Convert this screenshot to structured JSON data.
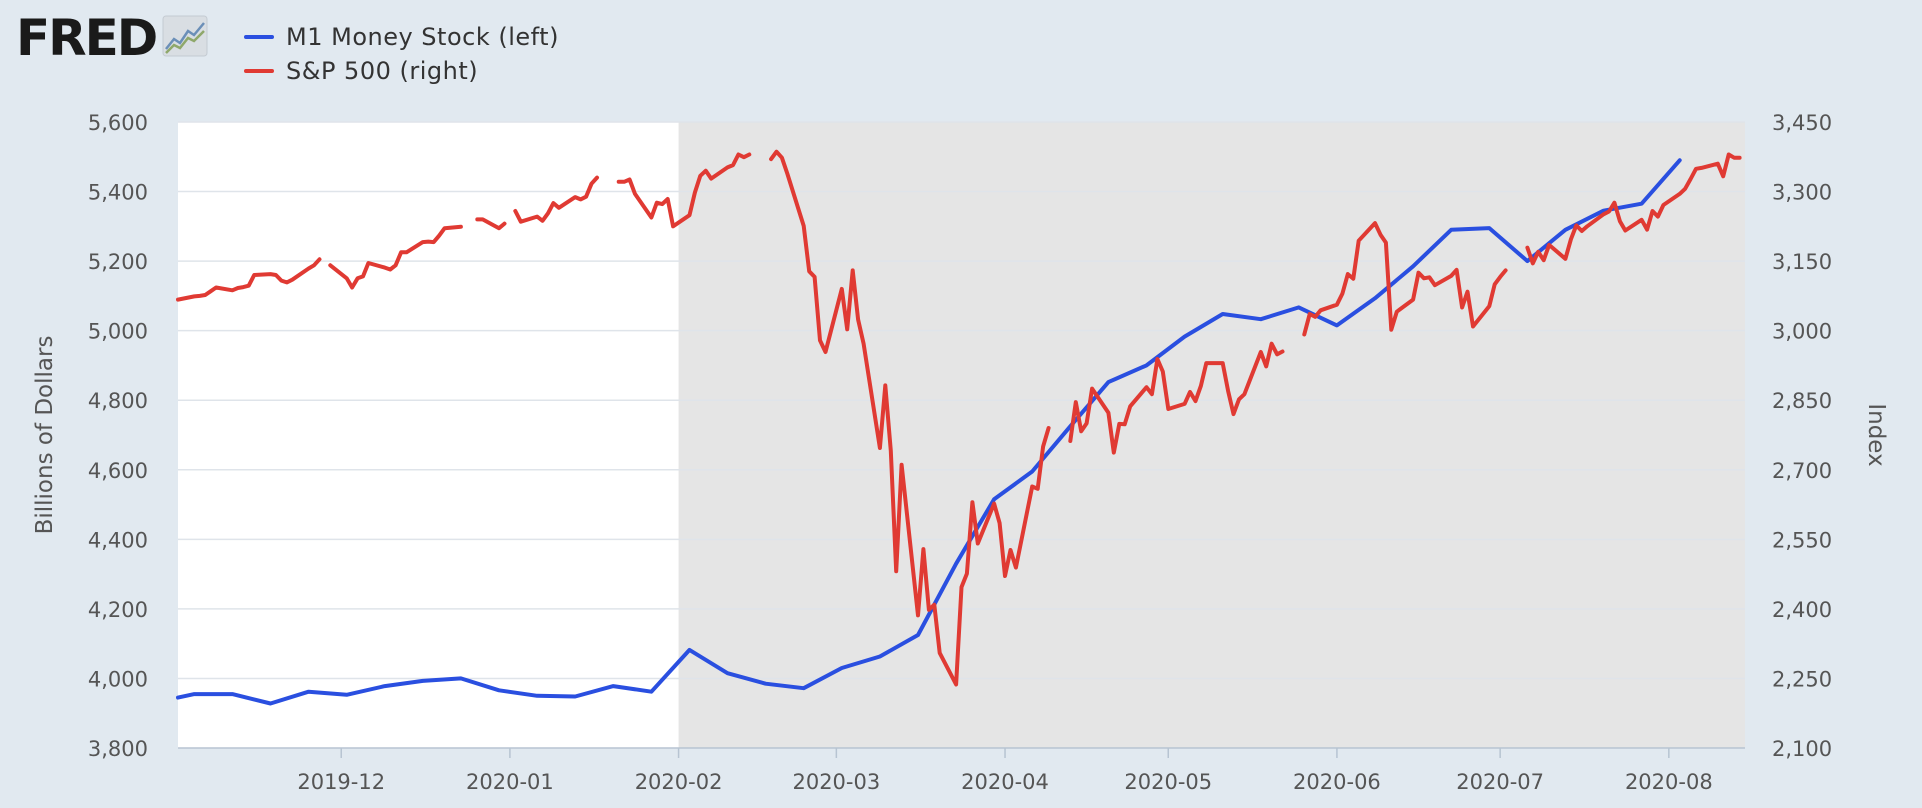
{
  "logo": {
    "text": "FRED",
    "icon": "chart-line-icon"
  },
  "colors": {
    "m1": "#2a4fe0",
    "sp500": "#e03a33",
    "background": "#e1e9f0",
    "plot": "#ffffff",
    "recession": "#e5e5e5",
    "grid": "#dfe4ea"
  },
  "chart_data": {
    "type": "line",
    "title": "",
    "legend_placement": "top-left",
    "grid": true,
    "recession_shading": {
      "start": "2020-02-01",
      "end": "2020-08-15"
    },
    "xaxis": {
      "range": [
        "2019-11-01",
        "2020-08-15"
      ],
      "ticks": [
        {
          "date": "2019-12-01",
          "label": "2019-12"
        },
        {
          "date": "2020-01-01",
          "label": "2020-01"
        },
        {
          "date": "2020-02-01",
          "label": "2020-02"
        },
        {
          "date": "2020-03-01",
          "label": "2020-03"
        },
        {
          "date": "2020-04-01",
          "label": "2020-04"
        },
        {
          "date": "2020-05-01",
          "label": "2020-05"
        },
        {
          "date": "2020-06-01",
          "label": "2020-06"
        },
        {
          "date": "2020-07-01",
          "label": "2020-07"
        },
        {
          "date": "2020-08-01",
          "label": "2020-08"
        }
      ]
    },
    "yaxis_left": {
      "label": "Billions of Dollars",
      "range": [
        3800,
        5600
      ],
      "ticks": [
        "3,800",
        "4,000",
        "4,200",
        "4,400",
        "4,600",
        "4,800",
        "5,000",
        "5,200",
        "5,400",
        "5,600"
      ]
    },
    "yaxis_right": {
      "label": "Index",
      "range": [
        2100,
        3450
      ],
      "ticks": [
        "2,100",
        "2,250",
        "2,400",
        "2,550",
        "2,700",
        "2,850",
        "3,000",
        "3,150",
        "3,300",
        "3,450"
      ]
    },
    "series": [
      {
        "name": "M1 Money Stock (left)",
        "axis": "left",
        "points": [
          [
            "2019-11-01",
            3945
          ],
          [
            "2019-11-04",
            3955
          ],
          [
            "2019-11-11",
            3955
          ],
          [
            "2019-11-18",
            3928
          ],
          [
            "2019-11-25",
            3962
          ],
          [
            "2019-12-02",
            3953
          ],
          [
            "2019-12-09",
            3978
          ],
          [
            "2019-12-16",
            3993
          ],
          [
            "2019-12-23",
            4000
          ],
          [
            "2019-12-30",
            3966
          ],
          [
            "2020-01-06",
            3950
          ],
          [
            "2020-01-13",
            3948
          ],
          [
            "2020-01-20",
            3978
          ],
          [
            "2020-01-27",
            3962
          ],
          [
            "2020-02-03",
            4082
          ],
          [
            "2020-02-10",
            4015
          ],
          [
            "2020-02-17",
            3985
          ],
          [
            "2020-02-24",
            3972
          ],
          [
            "2020-03-02",
            4030
          ],
          [
            "2020-03-09",
            4063
          ],
          [
            "2020-03-16",
            4125
          ],
          [
            "2020-03-23",
            4330
          ],
          [
            "2020-03-30",
            4515
          ],
          [
            "2020-04-06",
            4595
          ],
          [
            "2020-04-13",
            4725
          ],
          [
            "2020-04-20",
            4852
          ],
          [
            "2020-04-27",
            4900
          ],
          [
            "2020-05-04",
            4983
          ],
          [
            "2020-05-11",
            5048
          ],
          [
            "2020-05-18",
            5033
          ],
          [
            "2020-05-25",
            5067
          ],
          [
            "2020-06-01",
            5015
          ],
          [
            "2020-06-08",
            5093
          ],
          [
            "2020-06-15",
            5185
          ],
          [
            "2020-06-22",
            5290
          ],
          [
            "2020-06-29",
            5295
          ],
          [
            "2020-07-06",
            5200
          ],
          [
            "2020-07-13",
            5290
          ],
          [
            "2020-07-20",
            5345
          ],
          [
            "2020-07-27",
            5365
          ],
          [
            "2020-08-03",
            5490
          ]
        ]
      },
      {
        "name": "S&P 500 (right)",
        "axis": "right",
        "points": [
          [
            "2019-11-01",
            3067
          ],
          [
            "2019-11-04",
            3074
          ],
          [
            "2019-11-05",
            3075
          ],
          [
            "2019-11-06",
            3077
          ],
          [
            "2019-11-07",
            3085
          ],
          [
            "2019-11-08",
            3093
          ],
          [
            "2019-11-11",
            3087
          ],
          [
            "2019-11-12",
            3092
          ],
          [
            "2019-11-13",
            3094
          ],
          [
            "2019-11-14",
            3097
          ],
          [
            "2019-11-15",
            3120
          ],
          [
            "2019-11-18",
            3122
          ],
          [
            "2019-11-19",
            3120
          ],
          [
            "2019-11-20",
            3108
          ],
          [
            "2019-11-21",
            3104
          ],
          [
            "2019-11-22",
            3110
          ],
          [
            "2019-11-25",
            3134
          ],
          [
            "2019-11-26",
            3141
          ],
          [
            "2019-11-27",
            3154
          ],
          null,
          [
            "2019-11-29",
            3141
          ],
          [
            "2019-12-02",
            3113
          ],
          [
            "2019-12-03",
            3093
          ],
          [
            "2019-12-04",
            3113
          ],
          [
            "2019-12-05",
            3117
          ],
          [
            "2019-12-06",
            3146
          ],
          [
            "2019-12-09",
            3136
          ],
          [
            "2019-12-10",
            3132
          ],
          [
            "2019-12-11",
            3141
          ],
          [
            "2019-12-12",
            3169
          ],
          [
            "2019-12-13",
            3169
          ],
          [
            "2019-12-16",
            3191
          ],
          [
            "2019-12-17",
            3192
          ],
          [
            "2019-12-18",
            3191
          ],
          [
            "2019-12-19",
            3205
          ],
          [
            "2019-12-20",
            3221
          ],
          [
            "2019-12-23",
            3224
          ],
          null,
          [
            "2019-12-26",
            3240
          ],
          [
            "2019-12-27",
            3240
          ],
          [
            "2019-12-30",
            3221
          ],
          [
            "2019-12-31",
            3231
          ],
          null,
          [
            "2020-01-02",
            3258
          ],
          [
            "2020-01-03",
            3235
          ],
          [
            "2020-01-06",
            3246
          ],
          [
            "2020-01-07",
            3237
          ],
          [
            "2020-01-08",
            3253
          ],
          [
            "2020-01-09",
            3275
          ],
          [
            "2020-01-10",
            3265
          ],
          [
            "2020-01-13",
            3288
          ],
          [
            "2020-01-14",
            3283
          ],
          [
            "2020-01-15",
            3289
          ],
          [
            "2020-01-16",
            3317
          ],
          [
            "2020-01-17",
            3330
          ],
          null,
          [
            "2020-01-21",
            3321
          ],
          [
            "2020-01-22",
            3321
          ],
          [
            "2020-01-23",
            3326
          ],
          [
            "2020-01-24",
            3295
          ],
          [
            "2020-01-27",
            3244
          ],
          [
            "2020-01-28",
            3276
          ],
          [
            "2020-01-29",
            3273
          ],
          [
            "2020-01-30",
            3284
          ],
          [
            "2020-01-31",
            3225
          ],
          [
            "2020-02-03",
            3249
          ],
          [
            "2020-02-04",
            3298
          ],
          [
            "2020-02-05",
            3334
          ],
          [
            "2020-02-06",
            3345
          ],
          [
            "2020-02-07",
            3328
          ],
          [
            "2020-02-10",
            3352
          ],
          [
            "2020-02-11",
            3357
          ],
          [
            "2020-02-12",
            3380
          ],
          [
            "2020-02-13",
            3374
          ],
          [
            "2020-02-14",
            3380
          ],
          null,
          [
            "2020-02-18",
            3370
          ],
          [
            "2020-02-19",
            3386
          ],
          [
            "2020-02-20",
            3373
          ],
          [
            "2020-02-21",
            3338
          ],
          [
            "2020-02-24",
            3226
          ],
          [
            "2020-02-25",
            3128
          ],
          [
            "2020-02-26",
            3116
          ],
          [
            "2020-02-27",
            2979
          ],
          [
            "2020-02-28",
            2954
          ],
          [
            "2020-03-02",
            3090
          ],
          [
            "2020-03-03",
            3003
          ],
          [
            "2020-03-04",
            3130
          ],
          [
            "2020-03-05",
            3024
          ],
          [
            "2020-03-06",
            2972
          ],
          [
            "2020-03-09",
            2747
          ],
          [
            "2020-03-10",
            2882
          ],
          [
            "2020-03-11",
            2741
          ],
          [
            "2020-03-12",
            2481
          ],
          [
            "2020-03-13",
            2711
          ],
          [
            "2020-03-16",
            2386
          ],
          [
            "2020-03-17",
            2529
          ],
          [
            "2020-03-18",
            2398
          ],
          [
            "2020-03-19",
            2409
          ],
          [
            "2020-03-20",
            2305
          ],
          [
            "2020-03-23",
            2237
          ],
          [
            "2020-03-24",
            2447
          ],
          [
            "2020-03-25",
            2476
          ],
          [
            "2020-03-26",
            2630
          ],
          [
            "2020-03-27",
            2541
          ],
          [
            "2020-03-30",
            2627
          ],
          [
            "2020-03-31",
            2585
          ],
          [
            "2020-04-01",
            2471
          ],
          [
            "2020-04-02",
            2527
          ],
          [
            "2020-04-03",
            2489
          ],
          [
            "2020-04-06",
            2664
          ],
          [
            "2020-04-07",
            2659
          ],
          [
            "2020-04-08",
            2750
          ],
          [
            "2020-04-09",
            2790
          ],
          null,
          [
            "2020-04-13",
            2762
          ],
          [
            "2020-04-14",
            2846
          ],
          [
            "2020-04-15",
            2783
          ],
          [
            "2020-04-16",
            2800
          ],
          [
            "2020-04-17",
            2875
          ],
          [
            "2020-04-20",
            2823
          ],
          [
            "2020-04-21",
            2737
          ],
          [
            "2020-04-22",
            2799
          ],
          [
            "2020-04-23",
            2798
          ],
          [
            "2020-04-24",
            2837
          ],
          [
            "2020-04-27",
            2878
          ],
          [
            "2020-04-28",
            2863
          ],
          [
            "2020-04-29",
            2939
          ],
          [
            "2020-04-30",
            2912
          ],
          [
            "2020-05-01",
            2831
          ],
          [
            "2020-05-04",
            2842
          ],
          [
            "2020-05-05",
            2868
          ],
          [
            "2020-05-06",
            2848
          ],
          [
            "2020-05-07",
            2881
          ],
          [
            "2020-05-08",
            2930
          ],
          [
            "2020-05-11",
            2930
          ],
          [
            "2020-05-12",
            2870
          ],
          [
            "2020-05-13",
            2820
          ],
          [
            "2020-05-14",
            2852
          ],
          [
            "2020-05-15",
            2863
          ],
          [
            "2020-05-18",
            2954
          ],
          [
            "2020-05-19",
            2923
          ],
          [
            "2020-05-20",
            2972
          ],
          [
            "2020-05-21",
            2949
          ],
          [
            "2020-05-22",
            2955
          ],
          null,
          [
            "2020-05-26",
            2992
          ],
          [
            "2020-05-27",
            3036
          ],
          [
            "2020-05-28",
            3030
          ],
          [
            "2020-05-29",
            3044
          ],
          [
            "2020-06-01",
            3056
          ],
          [
            "2020-06-02",
            3080
          ],
          [
            "2020-06-03",
            3122
          ],
          [
            "2020-06-04",
            3112
          ],
          [
            "2020-06-05",
            3194
          ],
          [
            "2020-06-08",
            3232
          ],
          [
            "2020-06-09",
            3207
          ],
          [
            "2020-06-10",
            3190
          ],
          [
            "2020-06-11",
            3002
          ],
          [
            "2020-06-12",
            3041
          ],
          [
            "2020-06-15",
            3067
          ],
          [
            "2020-06-16",
            3125
          ],
          [
            "2020-06-17",
            3113
          ],
          [
            "2020-06-18",
            3115
          ],
          [
            "2020-06-19",
            3098
          ],
          [
            "2020-06-22",
            3118
          ],
          [
            "2020-06-23",
            3131
          ],
          [
            "2020-06-24",
            3050
          ],
          [
            "2020-06-25",
            3084
          ],
          [
            "2020-06-26",
            3009
          ],
          [
            "2020-06-29",
            3053
          ],
          [
            "2020-06-30",
            3100
          ],
          [
            "2020-07-01",
            3116
          ],
          [
            "2020-07-02",
            3130
          ],
          null,
          [
            "2020-07-06",
            3179
          ],
          [
            "2020-07-07",
            3145
          ],
          [
            "2020-07-08",
            3170
          ],
          [
            "2020-07-09",
            3152
          ],
          [
            "2020-07-10",
            3185
          ],
          [
            "2020-07-13",
            3155
          ],
          [
            "2020-07-14",
            3197
          ],
          [
            "2020-07-15",
            3227
          ],
          [
            "2020-07-16",
            3215
          ],
          [
            "2020-07-17",
            3225
          ],
          [
            "2020-07-20",
            3251
          ],
          [
            "2020-07-21",
            3257
          ],
          [
            "2020-07-22",
            3276
          ],
          [
            "2020-07-23",
            3236
          ],
          [
            "2020-07-24",
            3216
          ],
          [
            "2020-07-27",
            3239
          ],
          [
            "2020-07-28",
            3218
          ],
          [
            "2020-07-29",
            3258
          ],
          [
            "2020-07-30",
            3246
          ],
          [
            "2020-07-31",
            3271
          ],
          [
            "2020-08-03",
            3295
          ],
          [
            "2020-08-04",
            3306
          ],
          [
            "2020-08-05",
            3327
          ],
          [
            "2020-08-06",
            3349
          ],
          [
            "2020-08-07",
            3351
          ],
          [
            "2020-08-10",
            3360
          ],
          [
            "2020-08-11",
            3333
          ],
          [
            "2020-08-12",
            3380
          ],
          [
            "2020-08-13",
            3373
          ],
          [
            "2020-08-14",
            3373
          ]
        ]
      }
    ]
  }
}
